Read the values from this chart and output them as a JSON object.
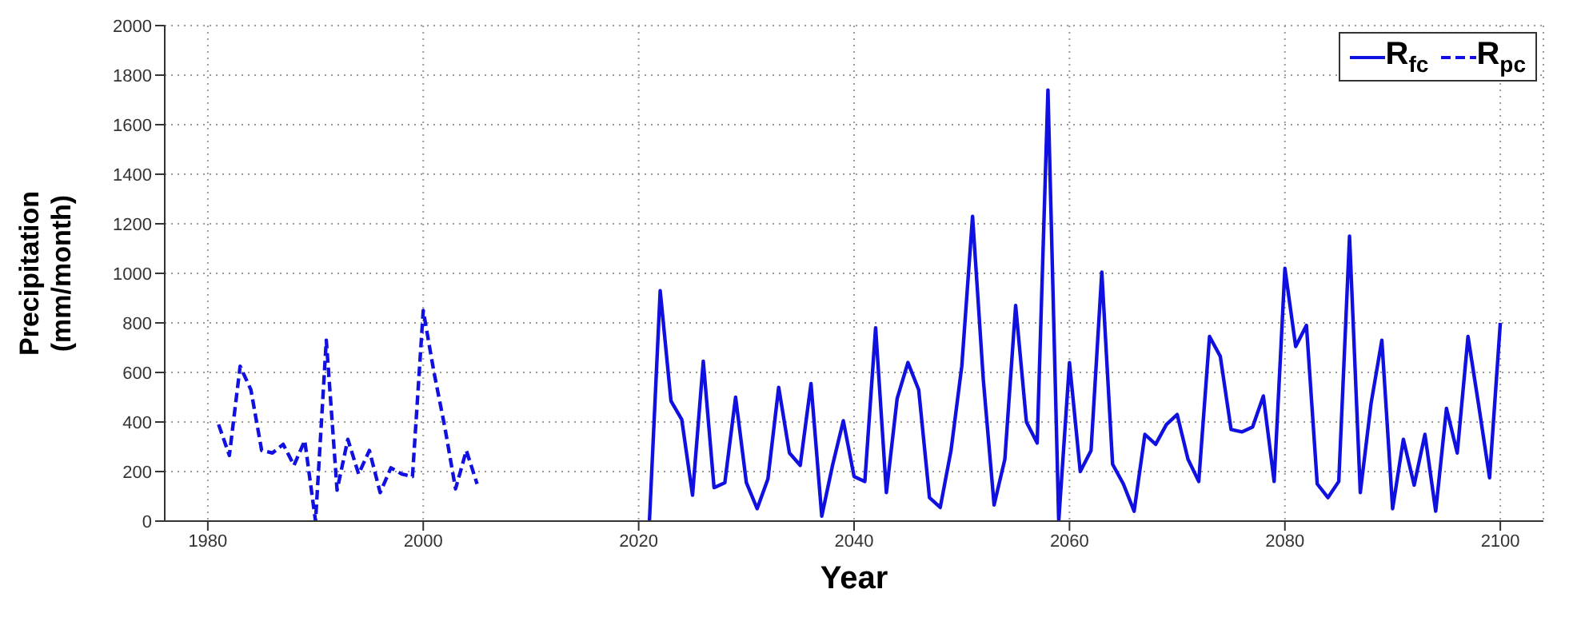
{
  "chart_data": {
    "type": "line",
    "xlabel": "Year",
    "ylabel": "Precipitation\n(mm/month)",
    "xlim": [
      1976,
      2104
    ],
    "xticks": [
      1980,
      2000,
      2020,
      2040,
      2060,
      2080,
      2100
    ],
    "ylim": [
      0,
      2000
    ],
    "yticks": [
      0,
      200,
      400,
      600,
      800,
      1000,
      1200,
      1400,
      1600,
      1800,
      2000
    ],
    "grid": true,
    "legend": "top right",
    "marker": "none",
    "series": [
      {
        "name": "R$_{fc}$",
        "color": "#1010e0",
        "line_style": "solid",
        "x": [
          2021,
          2022,
          2023,
          2024,
          2025,
          2026,
          2027,
          2028,
          2029,
          2030,
          2031,
          2032,
          2033,
          2034,
          2035,
          2036,
          2037,
          2038,
          2039,
          2040,
          2041,
          2042,
          2043,
          2044,
          2045,
          2046,
          2047,
          2048,
          2049,
          2050,
          2051,
          2052,
          2053,
          2054,
          2055,
          2056,
          2057,
          2058,
          2059,
          2060,
          2061,
          2062,
          2063,
          2064,
          2065,
          2066,
          2067,
          2068,
          2069,
          2070,
          2071,
          2072,
          2073,
          2074,
          2075,
          2076,
          2077,
          2078,
          2079,
          2080,
          2081,
          2082,
          2083,
          2084,
          2085,
          2086,
          2087,
          2088,
          2089,
          2090,
          2091,
          2092,
          2093,
          2094,
          2095,
          2096,
          2097,
          2098,
          2099,
          2100
        ],
        "values": [
          0,
          930,
          485,
          410,
          105,
          645,
          135,
          155,
          500,
          155,
          50,
          170,
          540,
          275,
          225,
          555,
          20,
          225,
          405,
          180,
          160,
          780,
          115,
          495,
          640,
          530,
          95,
          55,
          285,
          625,
          1230,
          570,
          65,
          250,
          870,
          400,
          315,
          1740,
          0,
          640,
          200,
          285,
          1005,
          230,
          150,
          40,
          350,
          310,
          390,
          430,
          250,
          160,
          745,
          665,
          370,
          360,
          380,
          505,
          160,
          1020,
          705,
          790,
          150,
          95,
          160,
          1150,
          115,
          475,
          730,
          50,
          330,
          145,
          350,
          40,
          455,
          275,
          745,
          465,
          175,
          800
        ]
      },
      {
        "name": "R$_{pc}$",
        "color": "#1010e0",
        "line_style": "dashed",
        "x": [
          1981,
          1982,
          1983,
          1984,
          1985,
          1986,
          1987,
          1988,
          1989,
          1990,
          1991,
          1992,
          1993,
          1994,
          1995,
          1996,
          1997,
          1998,
          1999,
          2000,
          2001,
          2002,
          2003,
          2004,
          2005
        ],
        "values": [
          390,
          265,
          625,
          530,
          285,
          275,
          310,
          225,
          325,
          0,
          730,
          125,
          330,
          190,
          285,
          115,
          215,
          190,
          180,
          850,
          600,
          380,
          130,
          285,
          150
        ]
      }
    ]
  }
}
